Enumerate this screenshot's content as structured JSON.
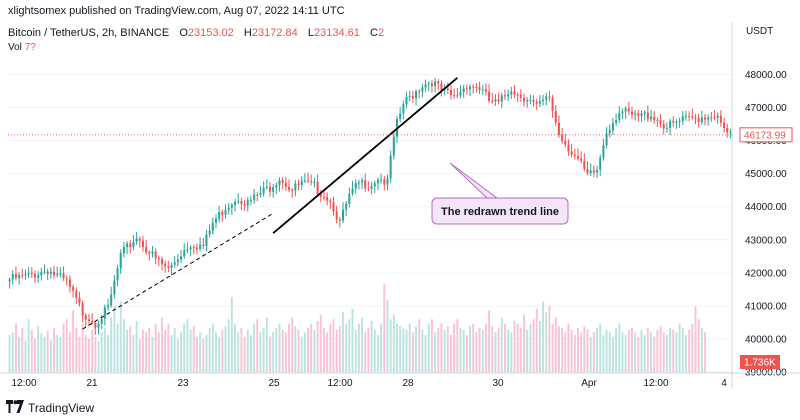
{
  "header": {
    "publish_line": "xlightsomex published on TradingView.com, Aug 07, 2022 14:11 UTC"
  },
  "legend": {
    "symbol": "Bitcoin / TetherUS, 2h, BINANCE",
    "open_label": "O",
    "open_value": "23153.02",
    "high_label": "H",
    "high_value": "23172.84",
    "low_label": "L",
    "low_value": "23134.61",
    "close_label": "C",
    "close_value": "2",
    "volume_label": "Vol",
    "volume_value": "7?"
  },
  "chart_data": {
    "type": "candlestick",
    "price_axis_label": "USDT",
    "y_ticks": [
      "39000.00",
      "40000.00",
      "41000.00",
      "42000.00",
      "43000.00",
      "44000.00",
      "45000.00",
      "46000.00",
      "47000.00",
      "48000.00"
    ],
    "ylim": [
      39000,
      48800
    ],
    "x_tick_labels": [
      "12:00",
      "21",
      "23",
      "25",
      "12:00",
      "28",
      "30",
      "Apr",
      "12:00",
      "4"
    ],
    "last_price": "46173.99",
    "volume_last": "1.736K",
    "price_path": [
      [
        0,
        41800
      ],
      [
        6,
        41900
      ],
      [
        12,
        42100
      ],
      [
        18,
        41700
      ],
      [
        23,
        40800
      ],
      [
        27,
        40500
      ],
      [
        31,
        40900
      ],
      [
        35,
        42500
      ],
      [
        40,
        43100
      ],
      [
        46,
        42400
      ],
      [
        50,
        42100
      ],
      [
        54,
        42600
      ],
      [
        57,
        42900
      ],
      [
        61,
        42800
      ],
      [
        64,
        43500
      ],
      [
        68,
        44000
      ],
      [
        72,
        44300
      ],
      [
        75,
        44100
      ],
      [
        79,
        44400
      ],
      [
        82,
        44600
      ],
      [
        85,
        44900
      ],
      [
        89,
        44500
      ],
      [
        92,
        44700
      ],
      [
        96,
        44600
      ],
      [
        100,
        44300
      ],
      [
        102,
        44000
      ],
      [
        104,
        43500
      ],
      [
        107,
        44300
      ],
      [
        110,
        44700
      ],
      [
        114,
        44700
      ],
      [
        116,
        44900
      ],
      [
        119,
        44700
      ],
      [
        120,
        45500
      ],
      [
        122,
        46500
      ],
      [
        124,
        47100
      ],
      [
        127,
        47400
      ],
      [
        130,
        47700
      ],
      [
        133,
        47800
      ],
      [
        136,
        47500
      ],
      [
        140,
        47300
      ],
      [
        144,
        47700
      ],
      [
        148,
        47600
      ],
      [
        151,
        47200
      ],
      [
        154,
        47100
      ],
      [
        158,
        47600
      ],
      [
        160,
        47400
      ],
      [
        163,
        47300
      ],
      [
        166,
        47000
      ],
      [
        170,
        47300
      ],
      [
        173,
        46200
      ],
      [
        176,
        45800
      ],
      [
        179,
        45400
      ],
      [
        182,
        44900
      ],
      [
        185,
        45100
      ],
      [
        188,
        46300
      ],
      [
        192,
        46900
      ],
      [
        197,
        46700
      ],
      [
        202,
        46800
      ],
      [
        207,
        46400
      ],
      [
        212,
        46600
      ],
      [
        217,
        46700
      ],
      [
        222,
        46800
      ],
      [
        225,
        46300
      ],
      [
        227,
        46173.99
      ]
    ],
    "volume": [
      0.42,
      0.45,
      0.55,
      0.4,
      0.5,
      0.35,
      0.6,
      0.48,
      0.38,
      0.52,
      0.44,
      0.4,
      0.47,
      0.36,
      0.5,
      0.42,
      0.4,
      0.55,
      0.6,
      0.45,
      0.7,
      0.5,
      0.4,
      0.55,
      0.42,
      0.38,
      0.48,
      0.4,
      0.35,
      0.45,
      0.5,
      0.42,
      0.62,
      0.75,
      0.55,
      0.8,
      0.6,
      0.48,
      0.52,
      0.42,
      0.58,
      0.38,
      0.48,
      0.45,
      0.5,
      0.4,
      0.55,
      0.45,
      0.62,
      0.48,
      0.55,
      0.42,
      0.5,
      0.38,
      0.45,
      0.55,
      0.6,
      0.48,
      0.52,
      0.4,
      0.45,
      0.38,
      0.42,
      0.5,
      0.55,
      0.45,
      0.4,
      0.48,
      0.52,
      0.6,
      0.85,
      0.55,
      0.45,
      0.5,
      0.4,
      0.48,
      0.42,
      0.55,
      0.6,
      0.45,
      0.5,
      0.62,
      0.4,
      0.45,
      0.5,
      0.55,
      0.48,
      0.45,
      0.55,
      0.62,
      0.52,
      0.48,
      0.4,
      0.45,
      0.5,
      0.55,
      0.48,
      0.58,
      0.65,
      0.5,
      0.45,
      0.55,
      0.6,
      0.48,
      0.52,
      0.68,
      0.55,
      0.6,
      0.72,
      0.48,
      0.55,
      0.62,
      0.45,
      0.5,
      0.58,
      0.48,
      0.42,
      0.55,
      1.0,
      0.82,
      0.6,
      0.65,
      0.55,
      0.52,
      0.5,
      0.48,
      0.55,
      0.45,
      0.52,
      0.6,
      0.48,
      0.42,
      0.55,
      0.6,
      0.45,
      0.5,
      0.55,
      0.48,
      0.52,
      0.42,
      0.55,
      0.6,
      0.5,
      0.48,
      0.42,
      0.52,
      0.55,
      0.45,
      0.5,
      0.48,
      0.55,
      0.7,
      0.52,
      0.45,
      0.5,
      0.62,
      0.55,
      0.48,
      0.45,
      0.58,
      0.55,
      0.5,
      0.65,
      0.48,
      0.55,
      0.6,
      0.72,
      0.58,
      0.8,
      0.68,
      0.75,
      0.55,
      0.62,
      0.52,
      0.5,
      0.45,
      0.55,
      0.48,
      0.42,
      0.5,
      0.45,
      0.52,
      0.48,
      0.4,
      0.45,
      0.5,
      0.55,
      0.42,
      0.48,
      0.45,
      0.4,
      0.5,
      0.55,
      0.45,
      0.42,
      0.48,
      0.5,
      0.45,
      0.4,
      0.48,
      0.42,
      0.5,
      0.45,
      0.4,
      0.48,
      0.52,
      0.45,
      0.42,
      0.5,
      0.48,
      0.45,
      0.55,
      0.5,
      0.42,
      0.48,
      0.55,
      0.75,
      0.6,
      0.5,
      0.45
    ],
    "dashed_trendline": [
      [
        23,
        40300
      ],
      [
        83,
        43800
      ]
    ],
    "trend_line": [
      [
        83,
        43200
      ],
      [
        141,
        47900
      ]
    ],
    "annotation": "The redrawn trend line",
    "colors": {
      "up": "#26a69a",
      "down": "#ef5350",
      "trend": "#000000",
      "callout_fill": "#f3e5f5",
      "callout_border": "#ba68c8",
      "axis_text": "#131722"
    }
  },
  "footer": {
    "brand": "TradingView"
  }
}
